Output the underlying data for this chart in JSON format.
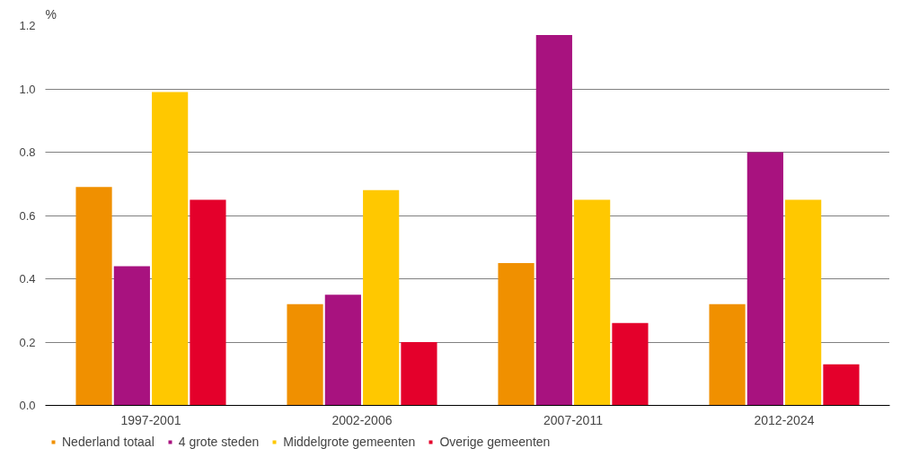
{
  "chart_data": {
    "type": "bar",
    "ylabel": "%",
    "categories": [
      "1997-2001",
      "2002-2006",
      "2007-2011",
      "2012-2024"
    ],
    "series": [
      {
        "name": "Nederland totaal",
        "color": "#f09000",
        "values": [
          0.69,
          0.32,
          0.45,
          0.32
        ]
      },
      {
        "name": "4 grote steden",
        "color": "#a8127f",
        "values": [
          0.44,
          0.35,
          1.17,
          0.8
        ]
      },
      {
        "name": "Middelgrote gemeenten",
        "color": "#ffc800",
        "values": [
          0.99,
          0.68,
          0.65,
          0.65
        ]
      },
      {
        "name": "Overige gemeenten",
        "color": "#e4002b",
        "values": [
          0.65,
          0.2,
          0.26,
          0.13
        ]
      }
    ],
    "ylim": [
      0,
      1.2
    ],
    "yticks": [
      {
        "value": 0,
        "label": "0.0"
      },
      0.2,
      0.4,
      0.6,
      0.8,
      {
        "value": 1.0,
        "label": "1.0"
      },
      1.2
    ],
    "grid": "y",
    "legend": "bottom"
  }
}
